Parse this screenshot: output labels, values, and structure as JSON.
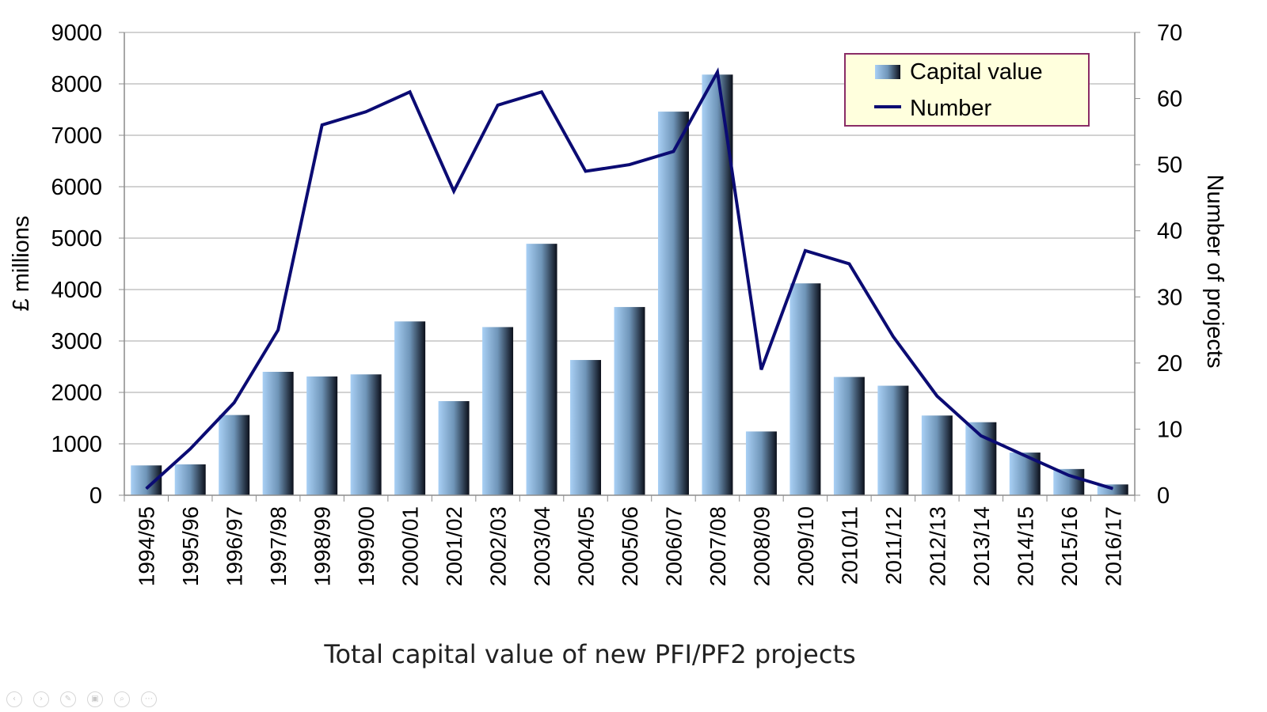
{
  "caption": "Total capital value of new PFI/PF2 projects",
  "nav_icons": [
    {
      "name": "previous-slide-icon",
      "glyph": "‹"
    },
    {
      "name": "next-slide-icon",
      "glyph": "›"
    },
    {
      "name": "pen-icon",
      "glyph": "✎"
    },
    {
      "name": "slides-icon",
      "glyph": "▣"
    },
    {
      "name": "zoom-icon",
      "glyph": "⌕"
    },
    {
      "name": "more-options-icon",
      "glyph": "⋯"
    }
  ],
  "chart_data": {
    "type": "bar",
    "categories": [
      "1994/95",
      "1995/96",
      "1996/97",
      "1997/98",
      "1998/99",
      "1999/00",
      "2000/01",
      "2001/02",
      "2002/03",
      "2003/04",
      "2004/05",
      "2005/06",
      "2006/07",
      "2007/08",
      "2008/09",
      "2009/10",
      "2010/11",
      "2011/12",
      "2012/13",
      "2013/14",
      "2014/15",
      "2015/16",
      "2016/17"
    ],
    "series": [
      {
        "name": "Capital value",
        "type": "bar",
        "axis": "left",
        "values": [
          580,
          600,
          1560,
          2400,
          2310,
          2350,
          3380,
          1830,
          3270,
          4890,
          2630,
          3660,
          7460,
          8180,
          1240,
          4120,
          2300,
          2130,
          1550,
          1420,
          830,
          510,
          210
        ]
      },
      {
        "name": "Number",
        "type": "line",
        "axis": "right",
        "values": [
          1,
          7,
          14,
          25,
          56,
          58,
          61,
          46,
          59,
          61,
          49,
          50,
          52,
          64,
          19,
          37,
          35,
          24,
          15,
          9,
          6,
          3,
          1
        ]
      }
    ],
    "ylabel": "£ millions",
    "y2label": "Number of projects",
    "xlabel": "",
    "ylim": [
      0,
      9000
    ],
    "y2lim": [
      0,
      70
    ],
    "yticks": [
      0,
      1000,
      2000,
      3000,
      4000,
      5000,
      6000,
      7000,
      8000,
      9000
    ],
    "y2ticks": [
      0,
      10,
      20,
      30,
      40,
      50,
      60,
      70
    ],
    "grid": true,
    "legend_position": "top-right",
    "colors": {
      "bar_light": "#a9d0f5",
      "bar_mid": "#6f95b8",
      "bar_dark": "#0b0f1a",
      "line": "#0b0b73",
      "legend_bg": "#ffffdd",
      "legend_border": "#8a2c66",
      "grid": "#a6a6a6",
      "axis": "#8c8c8c",
      "text": "#000000"
    }
  }
}
